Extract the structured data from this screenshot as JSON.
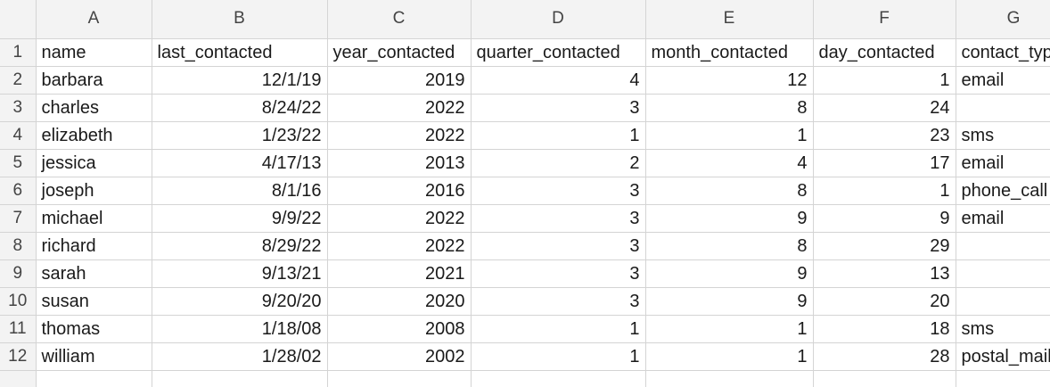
{
  "columns": [
    "A",
    "B",
    "C",
    "D",
    "E",
    "F",
    "G"
  ],
  "header_row": {
    "row_number": "1",
    "cells": [
      "name",
      "last_contacted",
      "year_contacted",
      "quarter_contacted",
      "month_contacted",
      "day_contacted",
      "contact_type"
    ]
  },
  "rows": [
    {
      "row_number": "2",
      "name": "barbara",
      "last_contacted": "12/1/19",
      "year_contacted": "2019",
      "quarter_contacted": "4",
      "month_contacted": "12",
      "day_contacted": "1",
      "contact_type": "email"
    },
    {
      "row_number": "3",
      "name": "charles",
      "last_contacted": "8/24/22",
      "year_contacted": "2022",
      "quarter_contacted": "3",
      "month_contacted": "8",
      "day_contacted": "24",
      "contact_type": ""
    },
    {
      "row_number": "4",
      "name": "elizabeth",
      "last_contacted": "1/23/22",
      "year_contacted": "2022",
      "quarter_contacted": "1",
      "month_contacted": "1",
      "day_contacted": "23",
      "contact_type": "sms"
    },
    {
      "row_number": "5",
      "name": "jessica",
      "last_contacted": "4/17/13",
      "year_contacted": "2013",
      "quarter_contacted": "2",
      "month_contacted": "4",
      "day_contacted": "17",
      "contact_type": "email"
    },
    {
      "row_number": "6",
      "name": "joseph",
      "last_contacted": "8/1/16",
      "year_contacted": "2016",
      "quarter_contacted": "3",
      "month_contacted": "8",
      "day_contacted": "1",
      "contact_type": "phone_call"
    },
    {
      "row_number": "7",
      "name": "michael",
      "last_contacted": "9/9/22",
      "year_contacted": "2022",
      "quarter_contacted": "3",
      "month_contacted": "9",
      "day_contacted": "9",
      "contact_type": "email"
    },
    {
      "row_number": "8",
      "name": "richard",
      "last_contacted": "8/29/22",
      "year_contacted": "2022",
      "quarter_contacted": "3",
      "month_contacted": "8",
      "day_contacted": "29",
      "contact_type": ""
    },
    {
      "row_number": "9",
      "name": "sarah",
      "last_contacted": "9/13/21",
      "year_contacted": "2021",
      "quarter_contacted": "3",
      "month_contacted": "9",
      "day_contacted": "13",
      "contact_type": ""
    },
    {
      "row_number": "10",
      "name": "susan",
      "last_contacted": "9/20/20",
      "year_contacted": "2020",
      "quarter_contacted": "3",
      "month_contacted": "9",
      "day_contacted": "20",
      "contact_type": ""
    },
    {
      "row_number": "11",
      "name": "thomas",
      "last_contacted": "1/18/08",
      "year_contacted": "2008",
      "quarter_contacted": "1",
      "month_contacted": "1",
      "day_contacted": "18",
      "contact_type": "sms"
    },
    {
      "row_number": "12",
      "name": "william",
      "last_contacted": "1/28/02",
      "year_contacted": "2002",
      "quarter_contacted": "1",
      "month_contacted": "1",
      "day_contacted": "28",
      "contact_type": "postal_mail"
    }
  ]
}
